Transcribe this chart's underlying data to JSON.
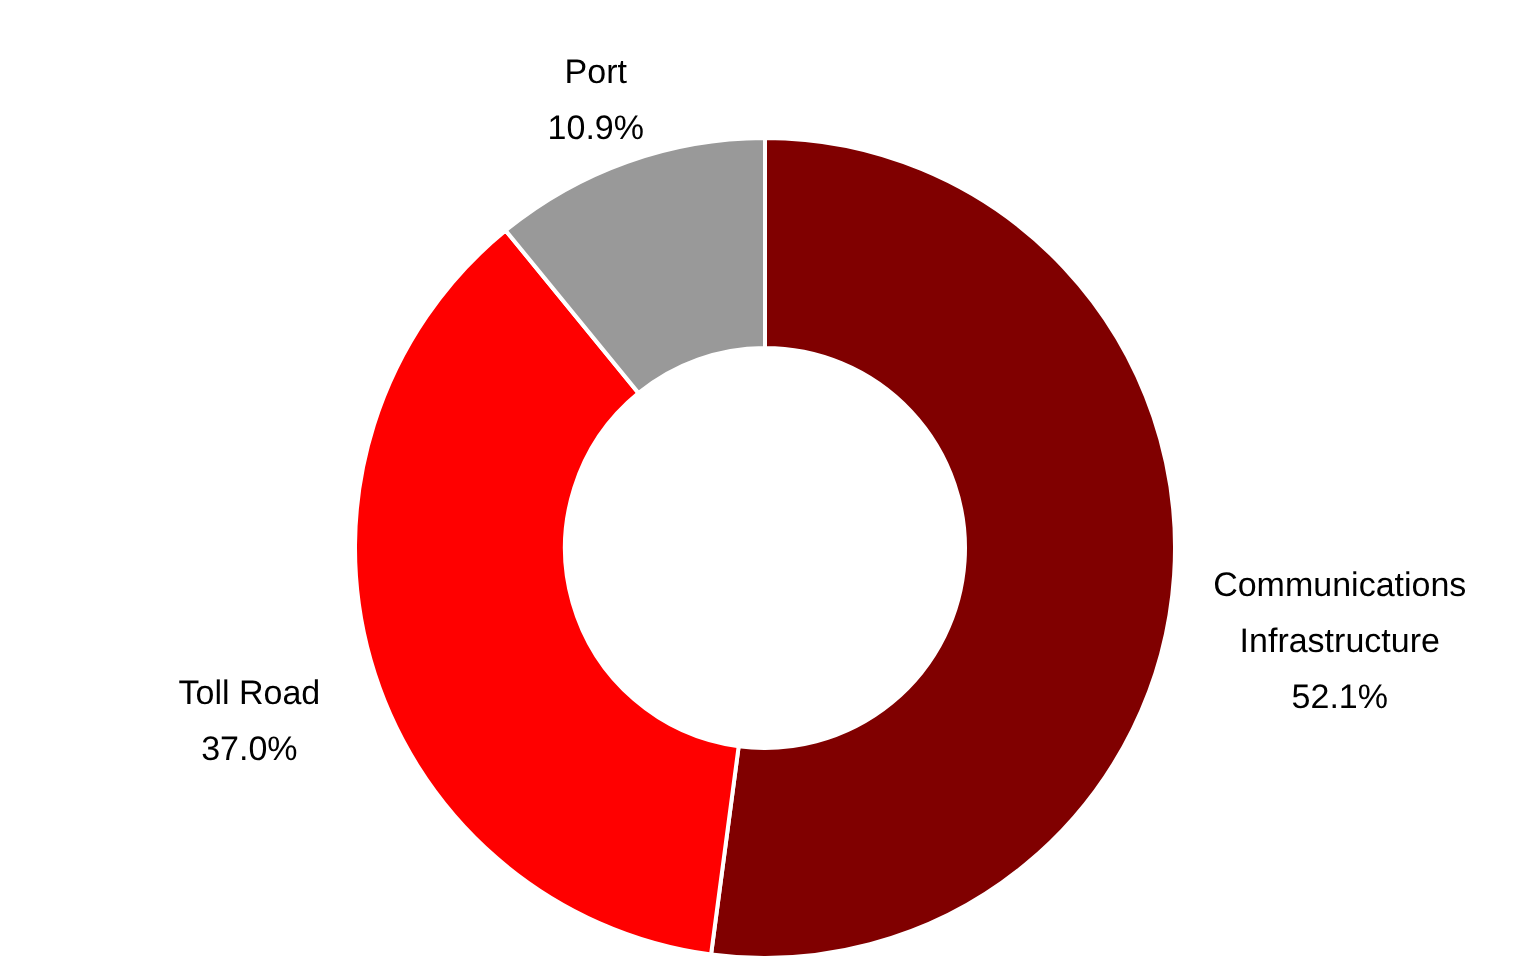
{
  "chart_data": {
    "type": "donut",
    "categories": [
      "Communications Infrastructure",
      "Toll Road",
      "Port"
    ],
    "values": [
      52.1,
      37.0,
      10.9
    ],
    "colors": [
      "#800000",
      "#ff0000",
      "#999999"
    ],
    "value_labels": [
      "52.1%",
      "37.0%",
      "10.9%"
    ],
    "legend": false
  }
}
